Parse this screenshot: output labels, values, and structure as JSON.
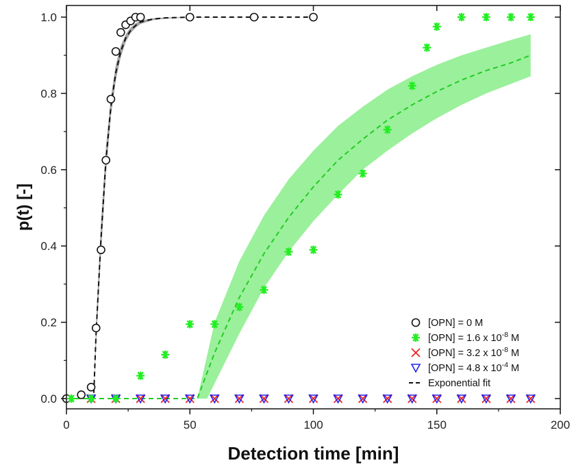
{
  "chart_data": {
    "type": "scatter",
    "xlabel": "Detection time [min]",
    "ylabel": "p(t) [-]",
    "xlim": [
      0,
      200
    ],
    "ylim": [
      0,
      1.05
    ],
    "xticks": [
      0,
      50,
      100,
      150,
      200
    ],
    "yticks": [
      0.0,
      0.2,
      0.4,
      0.6,
      0.8,
      1.0
    ],
    "xtick_labels": [
      "0",
      "50",
      "100",
      "150",
      "200"
    ],
    "ytick_labels": [
      "0.0",
      "0.2",
      "0.4",
      "0.6",
      "0.8",
      "1.0"
    ],
    "grid": false,
    "legend_position": "bottom-right",
    "series": [
      {
        "name": "[OPN] = 0 M",
        "legend_parts": [
          "[OPN] = 0 M",
          "",
          ""
        ],
        "marker": "circle",
        "color": "#111111",
        "x": [
          0,
          6,
          10,
          12,
          14,
          16,
          18,
          20,
          22,
          24,
          26,
          28,
          30,
          50,
          76,
          100
        ],
        "y": [
          0.0,
          0.01,
          0.03,
          0.185,
          0.39,
          0.625,
          0.785,
          0.91,
          0.96,
          0.98,
          0.99,
          1.0,
          1.0,
          1.0,
          1.0,
          1.0
        ]
      },
      {
        "name": "[OPN] = 1.6 x 10-8 M",
        "legend_parts": [
          "[OPN] = 1.6 x 10",
          "-8",
          " M"
        ],
        "marker": "asterisk",
        "color": "#22ee22",
        "x": [
          2,
          10,
          20,
          30,
          40,
          50,
          60,
          70,
          80,
          90,
          100,
          110,
          120,
          130,
          140,
          146,
          150,
          160,
          170,
          180,
          188
        ],
        "y": [
          0.0,
          0.0,
          0.0,
          0.06,
          0.115,
          0.195,
          0.195,
          0.24,
          0.285,
          0.385,
          0.39,
          0.535,
          0.59,
          0.705,
          0.82,
          0.92,
          0.975,
          1.0,
          1.0,
          1.0,
          1.0
        ]
      },
      {
        "name": "[OPN] = 3.2 x 10-8 M",
        "legend_parts": [
          "[OPN] = 3.2 x 10",
          "-8",
          " M"
        ],
        "marker": "cross",
        "color": "#ee2222",
        "x": [
          10,
          20,
          30,
          40,
          50,
          60,
          70,
          80,
          90,
          100,
          110,
          120,
          130,
          140,
          150,
          160,
          170,
          180,
          188
        ],
        "y": [
          0,
          0,
          0,
          0,
          0,
          0,
          0,
          0,
          0,
          0,
          0,
          0,
          0,
          0,
          0,
          0,
          0,
          0,
          0
        ]
      },
      {
        "name": "[OPN] = 4.8 x 10-4 M",
        "legend_parts": [
          "[OPN] = 4.8 x 10",
          "-4",
          " M"
        ],
        "marker": "triangle-down",
        "color": "#2222ee",
        "x": [
          10,
          20,
          30,
          40,
          50,
          60,
          70,
          80,
          90,
          100,
          110,
          120,
          130,
          140,
          150,
          160,
          170,
          180,
          188
        ],
        "y": [
          0,
          0,
          0,
          0,
          0,
          0,
          0,
          0,
          0,
          0,
          0,
          0,
          0,
          0,
          0,
          0,
          0,
          0,
          0
        ]
      }
    ],
    "fits": [
      {
        "color": "#111111",
        "band_color": "#9a9a9a",
        "x": [
          0,
          11,
          12,
          14,
          16,
          18,
          20,
          22,
          24,
          26,
          28,
          30,
          35,
          40,
          50,
          75,
          100
        ],
        "y": [
          0,
          0,
          0.17,
          0.42,
          0.625,
          0.765,
          0.855,
          0.91,
          0.945,
          0.965,
          0.978,
          0.987,
          0.995,
          0.998,
          1.0,
          1.0,
          1.0
        ],
        "band_upper": [
          0,
          0,
          0.2,
          0.46,
          0.66,
          0.79,
          0.875,
          0.925,
          0.955,
          0.973,
          0.984,
          0.991,
          0.997,
          0.999,
          1.0,
          1.0,
          1.0
        ],
        "band_lower": [
          0,
          0,
          0.14,
          0.38,
          0.59,
          0.74,
          0.835,
          0.895,
          0.935,
          0.958,
          0.972,
          0.982,
          0.992,
          0.996,
          0.999,
          1.0,
          1.0
        ]
      },
      {
        "color": "#22cc22",
        "band_color": "#90ee90",
        "x": [
          0,
          50,
          53,
          60,
          70,
          80,
          90,
          100,
          110,
          120,
          130,
          140,
          150,
          160,
          170,
          180,
          188
        ],
        "y": [
          0,
          0,
          0,
          0.12,
          0.265,
          0.38,
          0.475,
          0.555,
          0.625,
          0.68,
          0.73,
          0.77,
          0.805,
          0.835,
          0.86,
          0.88,
          0.9
        ],
        "band_upper": [
          0,
          0,
          0.0,
          0.2,
          0.36,
          0.48,
          0.575,
          0.65,
          0.715,
          0.765,
          0.81,
          0.845,
          0.875,
          0.9,
          0.92,
          0.94,
          0.955
        ],
        "band_lower": [
          0,
          0,
          0.0,
          0.04,
          0.17,
          0.29,
          0.385,
          0.465,
          0.535,
          0.6,
          0.65,
          0.695,
          0.735,
          0.77,
          0.8,
          0.825,
          0.845
        ],
        "band_start": [
          50,
          57
        ]
      }
    ],
    "fit_legend_label": "Exponential fit"
  }
}
